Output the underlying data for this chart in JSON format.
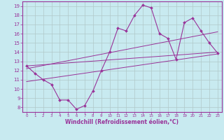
{
  "xlabel": "Windchill (Refroidissement éolien,°C)",
  "bg_color": "#c8eaf0",
  "line_color": "#993399",
  "grid_color": "#b0c8c8",
  "xlim": [
    -0.5,
    23.5
  ],
  "ylim": [
    7.5,
    19.5
  ],
  "yticks": [
    8,
    9,
    10,
    11,
    12,
    13,
    14,
    15,
    16,
    17,
    18,
    19
  ],
  "xticks": [
    0,
    1,
    2,
    3,
    4,
    5,
    6,
    7,
    8,
    9,
    10,
    11,
    12,
    13,
    14,
    15,
    16,
    17,
    18,
    19,
    20,
    21,
    22,
    23
  ],
  "series1_x": [
    0,
    1,
    2,
    3,
    4,
    5,
    6,
    7,
    8,
    9,
    10,
    11,
    12,
    13,
    14,
    15,
    16,
    17,
    18,
    19,
    20,
    21,
    22,
    23
  ],
  "series1_y": [
    12.5,
    11.7,
    11.0,
    10.5,
    8.8,
    8.8,
    7.8,
    8.2,
    9.8,
    12.0,
    14.0,
    16.6,
    16.3,
    18.0,
    19.1,
    18.8,
    16.0,
    15.5,
    13.2,
    17.2,
    17.7,
    16.3,
    15.0,
    13.9
  ],
  "series2_x": [
    0,
    23
  ],
  "series2_y": [
    10.8,
    13.8
  ],
  "series3_x": [
    0,
    23
  ],
  "series3_y": [
    12.5,
    14.0
  ],
  "series4_x": [
    0,
    23
  ],
  "series4_y": [
    12.2,
    16.2
  ]
}
